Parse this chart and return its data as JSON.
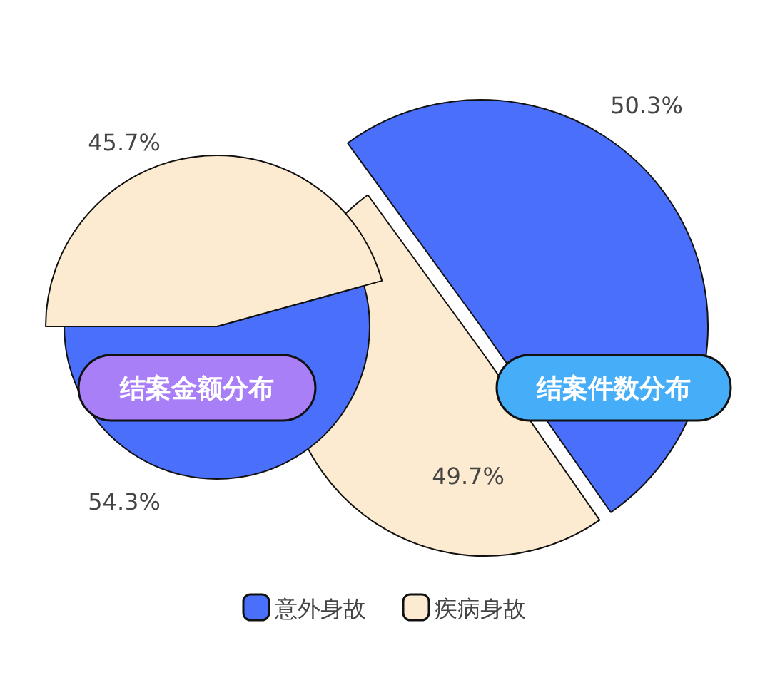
{
  "chart_data": [
    {
      "type": "pie",
      "title": "结案金额分布",
      "categories": [
        "意外身故",
        "疾病身故"
      ],
      "values": [
        54.3,
        45.7
      ],
      "colors": [
        "#4a6ffa",
        "#fdebd1"
      ],
      "value_labels": [
        "54.3%",
        "45.7%"
      ],
      "legend": "bottom"
    },
    {
      "type": "pie",
      "title": "结案件数分布",
      "categories": [
        null,
        null
      ],
      "values": [
        50.3,
        49.7
      ],
      "colors": [
        "#4a6ffa",
        "#fdebd1"
      ],
      "value_labels": [
        "50.3%",
        "49.7%"
      ]
    }
  ]
}
